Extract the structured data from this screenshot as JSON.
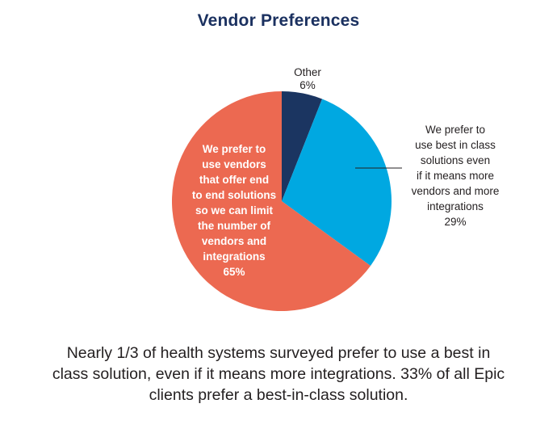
{
  "chart_data": {
    "type": "pie",
    "title": "Vendor Preferences",
    "slices": [
      {
        "label_lines": [
          "Other"
        ],
        "value": 6,
        "value_label": "6%",
        "color": "#1b3561",
        "label_color": "#231f20"
      },
      {
        "label_lines": [
          "We prefer to",
          "use best in class",
          "solutions even",
          "if it means more",
          "vendors and more",
          "integrations"
        ],
        "value": 29,
        "value_label": "29%",
        "color": "#00a8e1",
        "label_color": "#231f20"
      },
      {
        "label_lines": [
          "We prefer to",
          "use vendors",
          "that offer end",
          "to end solutions",
          "so we can limit",
          "the number of",
          "vendors and",
          "integrations"
        ],
        "value": 65,
        "value_label": "65%",
        "color": "#ec6951",
        "label_color": "#ffffff"
      }
    ],
    "start": "12 o'clock",
    "direction": "clockwise"
  },
  "caption": "Nearly 1/3 of health systems surveyed prefer to use a best in class solution, even if it means more integrations. 33% of all Epic clients prefer a best-in-class solution."
}
